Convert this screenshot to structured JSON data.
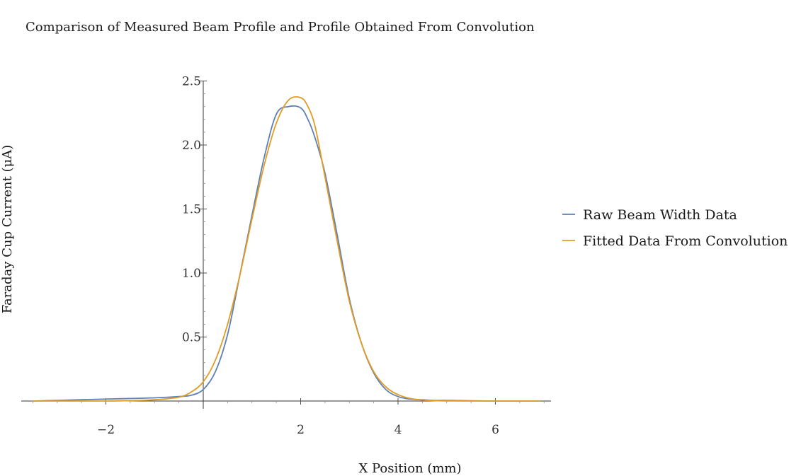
{
  "chart_data": {
    "type": "line",
    "title": "Comparison of Measured Beam Profile and Profile Obtained From Convolution",
    "xlabel": "X Position (mm)",
    "ylabel": "Faraday Cup Current (μA)",
    "xlim": [
      -3.6,
      7.0
    ],
    "ylim": [
      0,
      2.5
    ],
    "xticks": [
      -2,
      2,
      4,
      6
    ],
    "xtick_labels": [
      "−2",
      "2",
      "4",
      "6"
    ],
    "yticks": [
      0.5,
      1.0,
      1.5,
      2.0,
      2.5
    ],
    "ytick_labels": [
      "0.5",
      "1.0",
      "1.5",
      "2.0",
      "2.5"
    ],
    "grid": false,
    "legend_position": "right",
    "series": [
      {
        "name": "Raw Beam Width Data",
        "color": "#5e81b5",
        "x": [
          -3.5,
          -3.0,
          -2.5,
          -2.0,
          -1.5,
          -1.0,
          -0.5,
          -0.25,
          0.0,
          0.25,
          0.5,
          0.75,
          1.0,
          1.25,
          1.5,
          1.75,
          2.0,
          2.15,
          2.3,
          2.5,
          2.75,
          3.0,
          3.25,
          3.5,
          3.75,
          4.0,
          4.25,
          4.5,
          4.75,
          5.0,
          5.5,
          6.0,
          6.5,
          6.9
        ],
        "y": [
          0.0,
          0.005,
          0.01,
          0.015,
          0.02,
          0.025,
          0.035,
          0.045,
          0.09,
          0.23,
          0.52,
          0.98,
          1.45,
          1.9,
          2.24,
          2.3,
          2.29,
          2.2,
          2.05,
          1.78,
          1.3,
          0.8,
          0.45,
          0.22,
          0.09,
          0.035,
          0.015,
          0.01,
          0.005,
          0.005,
          0.002,
          0.0,
          0.0,
          0.0
        ]
      },
      {
        "name": "Fitted Data From Convolution",
        "color": "#e19c24",
        "x": [
          -3.5,
          -3.0,
          -2.5,
          -2.0,
          -1.5,
          -1.0,
          -0.5,
          -0.25,
          0.0,
          0.25,
          0.5,
          0.75,
          1.0,
          1.25,
          1.5,
          1.75,
          2.0,
          2.15,
          2.3,
          2.5,
          2.75,
          3.0,
          3.25,
          3.5,
          3.75,
          4.0,
          4.25,
          4.5,
          4.75,
          5.0,
          5.5,
          6.0,
          6.5,
          6.9
        ],
        "y": [
          0.0,
          0.0,
          0.0,
          0.0,
          0.003,
          0.01,
          0.03,
          0.07,
          0.15,
          0.32,
          0.6,
          0.98,
          1.42,
          1.84,
          2.17,
          2.35,
          2.37,
          2.3,
          2.14,
          1.75,
          1.25,
          0.78,
          0.45,
          0.23,
          0.11,
          0.05,
          0.02,
          0.008,
          0.003,
          0.001,
          0.0,
          0.0,
          0.0,
          0.0
        ]
      }
    ]
  }
}
